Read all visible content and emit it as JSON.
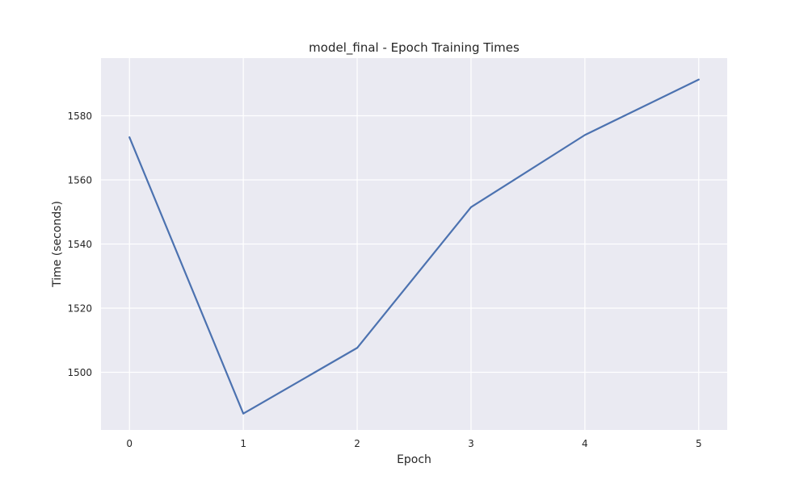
{
  "chart_data": {
    "type": "line",
    "title": "model_final - Epoch Training Times",
    "xlabel": "Epoch",
    "ylabel": "Time (seconds)",
    "xlim": [
      -0.25,
      5.25
    ],
    "ylim": [
      1482,
      1598
    ],
    "xticks": [
      0,
      1,
      2,
      3,
      4,
      5
    ],
    "yticks": [
      1500,
      1520,
      1540,
      1560,
      1580
    ],
    "grid": true,
    "series": [
      {
        "x": [
          0,
          1,
          2,
          3,
          4,
          5
        ],
        "values": [
          1573.3,
          1487.1,
          1507.6,
          1551.5,
          1574.0,
          1591.3
        ],
        "color": "#4c72b0"
      }
    ],
    "background_color": "#eaeaf2",
    "grid_color": "#ffffff"
  }
}
